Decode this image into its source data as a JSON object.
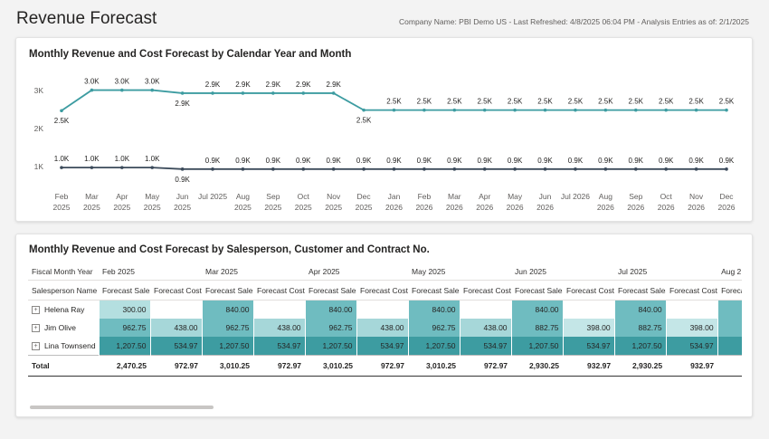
{
  "header": {
    "title": "Revenue Forecast",
    "meta": "Company Name: PBI Demo US - Last Refreshed: 4/8/2025 06:04 PM - Analysis Entries as of: 2/1/2025"
  },
  "line_chart_title": "Monthly Revenue and Cost Forecast by Calendar Year and Month",
  "chart_data": {
    "type": "line",
    "title": "Monthly Revenue and Cost Forecast by Calendar Year and Month",
    "x": [
      [
        "Feb",
        "2025"
      ],
      [
        "Mar",
        "2025"
      ],
      [
        "Apr",
        "2025"
      ],
      [
        "May",
        "2025"
      ],
      [
        "Jun",
        "2025"
      ],
      [
        "Jul 2025",
        ""
      ],
      [
        "Aug",
        "2025"
      ],
      [
        "Sep",
        "2025"
      ],
      [
        "Oct",
        "2025"
      ],
      [
        "Nov",
        "2025"
      ],
      [
        "Dec",
        "2025"
      ],
      [
        "Jan",
        "2026"
      ],
      [
        "Feb",
        "2026"
      ],
      [
        "Mar",
        "2026"
      ],
      [
        "Apr",
        "2026"
      ],
      [
        "May",
        "2026"
      ],
      [
        "Jun",
        "2026"
      ],
      [
        "Jul 2026",
        ""
      ],
      [
        "Aug",
        "2026"
      ],
      [
        "Sep",
        "2026"
      ],
      [
        "Oct",
        "2026"
      ],
      [
        "Nov",
        "2026"
      ],
      [
        "Dec",
        "2026"
      ]
    ],
    "y_ticks": [
      {
        "value": 1000,
        "label": "1K"
      },
      {
        "value": 2000,
        "label": "2K"
      },
      {
        "value": 3000,
        "label": "3K"
      }
    ],
    "ylim": [
      800,
      3250
    ],
    "grid": false,
    "series": [
      {
        "color": "#3d9ca1",
        "values": [
          2470.25,
          3010.25,
          3010.25,
          3010.25,
          2930.25,
          2930.25,
          2930.25,
          2930.25,
          2930.25,
          2930.25,
          2485,
          2485,
          2485,
          2485,
          2485,
          2485,
          2485,
          2485,
          2485,
          2485,
          2485,
          2485,
          2485
        ],
        "labels": [
          "2.5K",
          "3.0K",
          "3.0K",
          "3.0K",
          "2.9K",
          "2.9K",
          "2.9K",
          "2.9K",
          "2.9K",
          "2.9K",
          "2.5K",
          "2.5K",
          "2.5K",
          "2.5K",
          "2.5K",
          "2.5K",
          "2.5K",
          "2.5K",
          "2.5K",
          "2.5K",
          "2.5K",
          "2.5K",
          "2.5K"
        ],
        "label_pos": [
          "below",
          "above",
          "above",
          "above",
          "below",
          "above",
          "above",
          "above",
          "above",
          "above",
          "below",
          "above",
          "above",
          "above",
          "above",
          "above",
          "above",
          "above",
          "above",
          "above",
          "above",
          "above",
          "above"
        ]
      },
      {
        "color": "#3b4a5a",
        "values": [
          972.97,
          972.97,
          972.97,
          972.97,
          932.97,
          932.97,
          932.97,
          932.97,
          932.97,
          932.97,
          932.97,
          932.97,
          932.97,
          932.97,
          932.97,
          932.97,
          932.97,
          932.97,
          932.97,
          932.97,
          932.97,
          932.97,
          932.97
        ],
        "labels": [
          "1.0K",
          "1.0K",
          "1.0K",
          "1.0K",
          "0.9K",
          "0.9K",
          "0.9K",
          "0.9K",
          "0.9K",
          "0.9K",
          "0.9K",
          "0.9K",
          "0.9K",
          "0.9K",
          "0.9K",
          "0.9K",
          "0.9K",
          "0.9K",
          "0.9K",
          "0.9K",
          "0.9K",
          "0.9K",
          "0.9K"
        ],
        "label_pos": [
          "above",
          "above",
          "above",
          "above",
          "below",
          "above",
          "above",
          "above",
          "above",
          "above",
          "above",
          "above",
          "above",
          "above",
          "above",
          "above",
          "above",
          "above",
          "above",
          "above",
          "above",
          "above",
          "above"
        ]
      }
    ]
  },
  "matrix": {
    "title": "Monthly Revenue and Cost Forecast by Salesperson, Customer and Contract No.",
    "corner_header": "Fiscal Month Year",
    "row_header": "Salesperson Name",
    "months": [
      "Feb 2025",
      "Mar 2025",
      "Apr 2025",
      "May 2025",
      "Jun 2025",
      "Jul 2025",
      "Aug 2"
    ],
    "measures": [
      "Forecast Sales",
      "Forecast Costs"
    ],
    "rows": [
      {
        "name": "Helena Ray",
        "cells": [
          "300.00",
          "",
          "840.00",
          "",
          "840.00",
          "",
          "840.00",
          "",
          "840.00",
          "",
          "840.00",
          "",
          ""
        ]
      },
      {
        "name": "Jim Olive",
        "cells": [
          "962.75",
          "438.00",
          "962.75",
          "438.00",
          "962.75",
          "438.00",
          "962.75",
          "438.00",
          "882.75",
          "398.00",
          "882.75",
          "398.00",
          ""
        ]
      },
      {
        "name": "Lina Townsend",
        "cells": [
          "1,207.50",
          "534.97",
          "1,207.50",
          "534.97",
          "1,207.50",
          "534.97",
          "1,207.50",
          "534.97",
          "1,207.50",
          "534.97",
          "1,207.50",
          "534.97",
          ""
        ]
      }
    ],
    "total": {
      "name": "Total",
      "cells": [
        "2,470.25",
        "972.97",
        "3,010.25",
        "972.97",
        "3,010.25",
        "972.97",
        "3,010.25",
        "972.97",
        "2,930.25",
        "932.97",
        "2,930.25",
        "932.97",
        "2"
      ]
    },
    "heat_colors": {
      "sales_low": "#b4dfe0",
      "sales_mid": "#6fbcc0",
      "sales_high": "#3d9ca1",
      "cost_light": "#c4e6e7",
      "cost_mid": "#a6d7d9",
      "cost_dark": "#3d9ca1"
    }
  }
}
